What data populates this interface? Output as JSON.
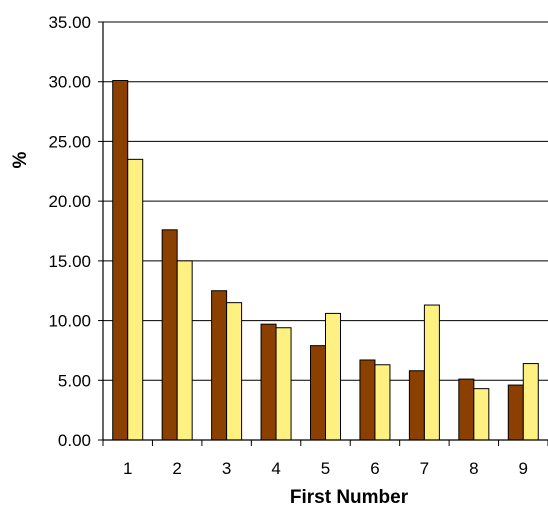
{
  "chart_data": {
    "type": "bar",
    "title": "",
    "xlabel": "First Number",
    "ylabel": "%",
    "ylim": [
      0,
      35
    ],
    "yticks": [
      "0.00",
      "5.00",
      "10.00",
      "15.00",
      "20.00",
      "25.00",
      "30.00",
      "35.00"
    ],
    "grid": true,
    "legend": "none",
    "categories": [
      "1",
      "2",
      "3",
      "4",
      "5",
      "6",
      "7",
      "8",
      "9"
    ],
    "series": [
      {
        "color": "#8B4000",
        "values": [
          30.1,
          17.6,
          12.5,
          9.7,
          7.9,
          6.7,
          5.8,
          5.1,
          4.6
        ]
      },
      {
        "color": "#FFF082",
        "values": [
          23.5,
          15.0,
          11.5,
          9.4,
          10.6,
          6.3,
          11.3,
          4.3,
          6.4
        ]
      }
    ]
  }
}
